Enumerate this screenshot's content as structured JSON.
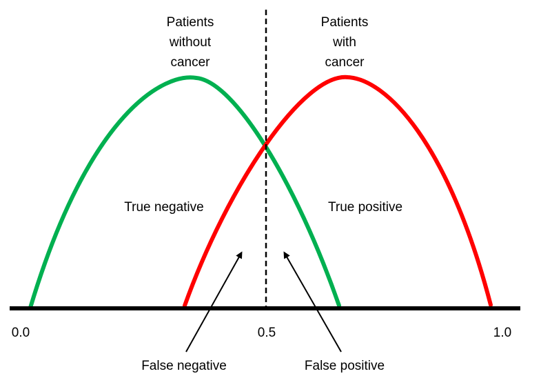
{
  "colors": {
    "without_cancer_curve": "#00B050",
    "with_cancer_curve": "#FF0000",
    "axis": "#000000",
    "arrow": "#000000",
    "threshold_line": "#000000"
  },
  "groups": {
    "without_cancer": [
      "Patients",
      "without",
      "cancer"
    ],
    "with_cancer": [
      "Patients",
      "with",
      "cancer"
    ]
  },
  "regions": {
    "true_negative": "True negative",
    "true_positive": "True positive",
    "false_negative": "False negative",
    "false_positive": "False positive"
  },
  "axis_ticks": {
    "start": "0.0",
    "mid": "0.5",
    "end": "1.0"
  },
  "threshold": 0.5
}
